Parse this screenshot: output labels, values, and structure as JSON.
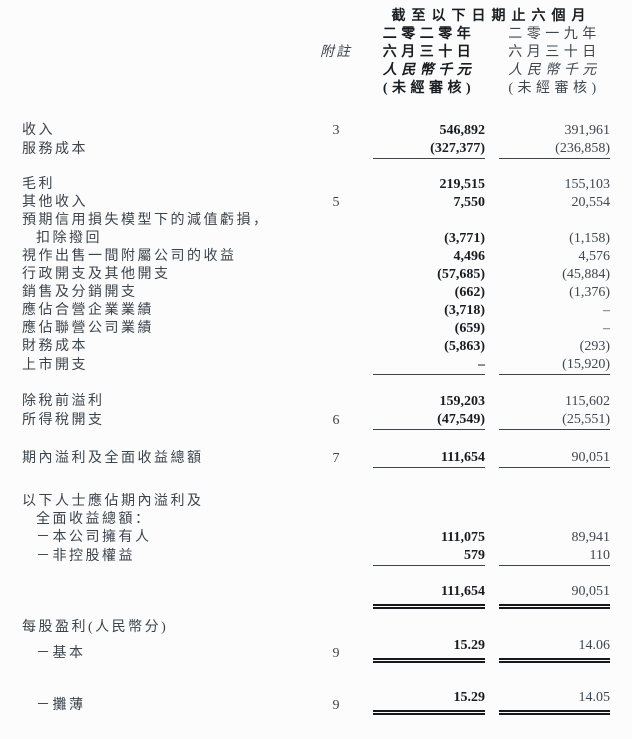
{
  "page": {
    "colors": {
      "text": "#3b444d",
      "bold": "#181d22",
      "val19": "#3e4750",
      "rule": "#3d444b",
      "rule_strong": "#16191d",
      "bg": "#fcfcfc"
    }
  },
  "header": {
    "period_title": "截至以下日期止六個月",
    "note_label": "附註",
    "columns": [
      {
        "year": "二零二零年",
        "date": "六月三十日",
        "unit": "人民幣千元",
        "audited": "(未經審核)"
      },
      {
        "year": "二零一九年",
        "date": "六月三十日",
        "unit": "人民幣千元",
        "audited": "(未經審核)"
      }
    ]
  },
  "sections": [
    {
      "name": "revenue",
      "rows": [
        {
          "label": "收入",
          "note": "3",
          "v2020": "546,892",
          "v2019": "391,961",
          "rule": "none",
          "indent": false
        },
        {
          "label": "服務成本",
          "note": "",
          "v2020": "(327,377)",
          "v2019": "(236,858)",
          "rule": "single",
          "indent": false
        }
      ]
    },
    {
      "name": "gross-profit-block",
      "rows": [
        {
          "label": "毛利",
          "note": "",
          "v2020": "219,515",
          "v2019": "155,103",
          "rule": "none",
          "indent": false
        },
        {
          "label": "其他收入",
          "note": "5",
          "v2020": "7,550",
          "v2019": "20,554",
          "rule": "none",
          "indent": false
        },
        {
          "label": "預期信用損失模型下的減值虧損，",
          "note": "",
          "v2020": "",
          "v2019": "",
          "rule": "none",
          "indent": false
        },
        {
          "label": "扣除撥回",
          "note": "",
          "v2020": "(3,771)",
          "v2019": "(1,158)",
          "rule": "none",
          "indent": true
        },
        {
          "label": "視作出售一間附屬公司的收益",
          "note": "",
          "v2020": "4,496",
          "v2019": "4,576",
          "rule": "none",
          "indent": false
        },
        {
          "label": "行政開支及其他開支",
          "note": "",
          "v2020": "(57,685)",
          "v2019": "(45,884)",
          "rule": "none",
          "indent": false
        },
        {
          "label": "銷售及分銷開支",
          "note": "",
          "v2020": "(662)",
          "v2019": "(1,376)",
          "rule": "none",
          "indent": false
        },
        {
          "label": "應佔合營企業業績",
          "note": "",
          "v2020": "(3,718)",
          "v2019": "–",
          "rule": "none",
          "indent": false
        },
        {
          "label": "應佔聯營公司業績",
          "note": "",
          "v2020": "(659)",
          "v2019": "–",
          "rule": "none",
          "indent": false
        },
        {
          "label": "財務成本",
          "note": "",
          "v2020": "(5,863)",
          "v2019": "(293)",
          "rule": "none",
          "indent": false
        },
        {
          "label": "上市開支",
          "note": "",
          "v2020": "–",
          "v2019": "(15,920)",
          "rule": "single",
          "indent": false
        }
      ]
    },
    {
      "name": "pretax",
      "rows": [
        {
          "label": "除稅前溢利",
          "note": "",
          "v2020": "159,203",
          "v2019": "115,602",
          "rule": "none",
          "indent": false
        },
        {
          "label": "所得稅開支",
          "note": "6",
          "v2020": "(47,549)",
          "v2019": "(25,551)",
          "rule": "single",
          "indent": false
        }
      ]
    },
    {
      "name": "profit-total",
      "rows": [
        {
          "label": "期內溢利及全面收益總額",
          "note": "7",
          "v2020": "111,654",
          "v2019": "90,051",
          "rule": "single",
          "indent": false
        }
      ]
    },
    {
      "name": "attributable",
      "rows": [
        {
          "label": "以下人士應佔期內溢利及",
          "note": "",
          "v2020": "",
          "v2019": "",
          "rule": "none",
          "indent": false
        },
        {
          "label": "全面收益總額：",
          "note": "",
          "v2020": "",
          "v2019": "",
          "rule": "none",
          "indent": true
        },
        {
          "label": "－本公司擁有人",
          "note": "",
          "v2020": "111,075",
          "v2019": "89,941",
          "rule": "none",
          "indent": true
        },
        {
          "label": "－非控股權益",
          "note": "",
          "v2020": "579",
          "v2019": "110",
          "rule": "single",
          "indent": true
        }
      ]
    },
    {
      "name": "attributable-total",
      "rows": [
        {
          "label": "",
          "note": "",
          "v2020": "111,654",
          "v2019": "90,051",
          "rule": "double",
          "indent": false
        }
      ]
    },
    {
      "name": "eps-basic",
      "rows": [
        {
          "label": "每股盈利(人民幣分)",
          "note": "",
          "v2020": "",
          "v2019": "",
          "rule": "none",
          "indent": false
        },
        {
          "label": "－基本",
          "note": "9",
          "v2020": "15.29",
          "v2019": "14.06",
          "rule": "double",
          "indent": true
        }
      ]
    },
    {
      "name": "eps-diluted",
      "rows": [
        {
          "label": "－攤薄",
          "note": "9",
          "v2020": "15.29",
          "v2019": "14.05",
          "rule": "double",
          "indent": true
        }
      ]
    }
  ]
}
